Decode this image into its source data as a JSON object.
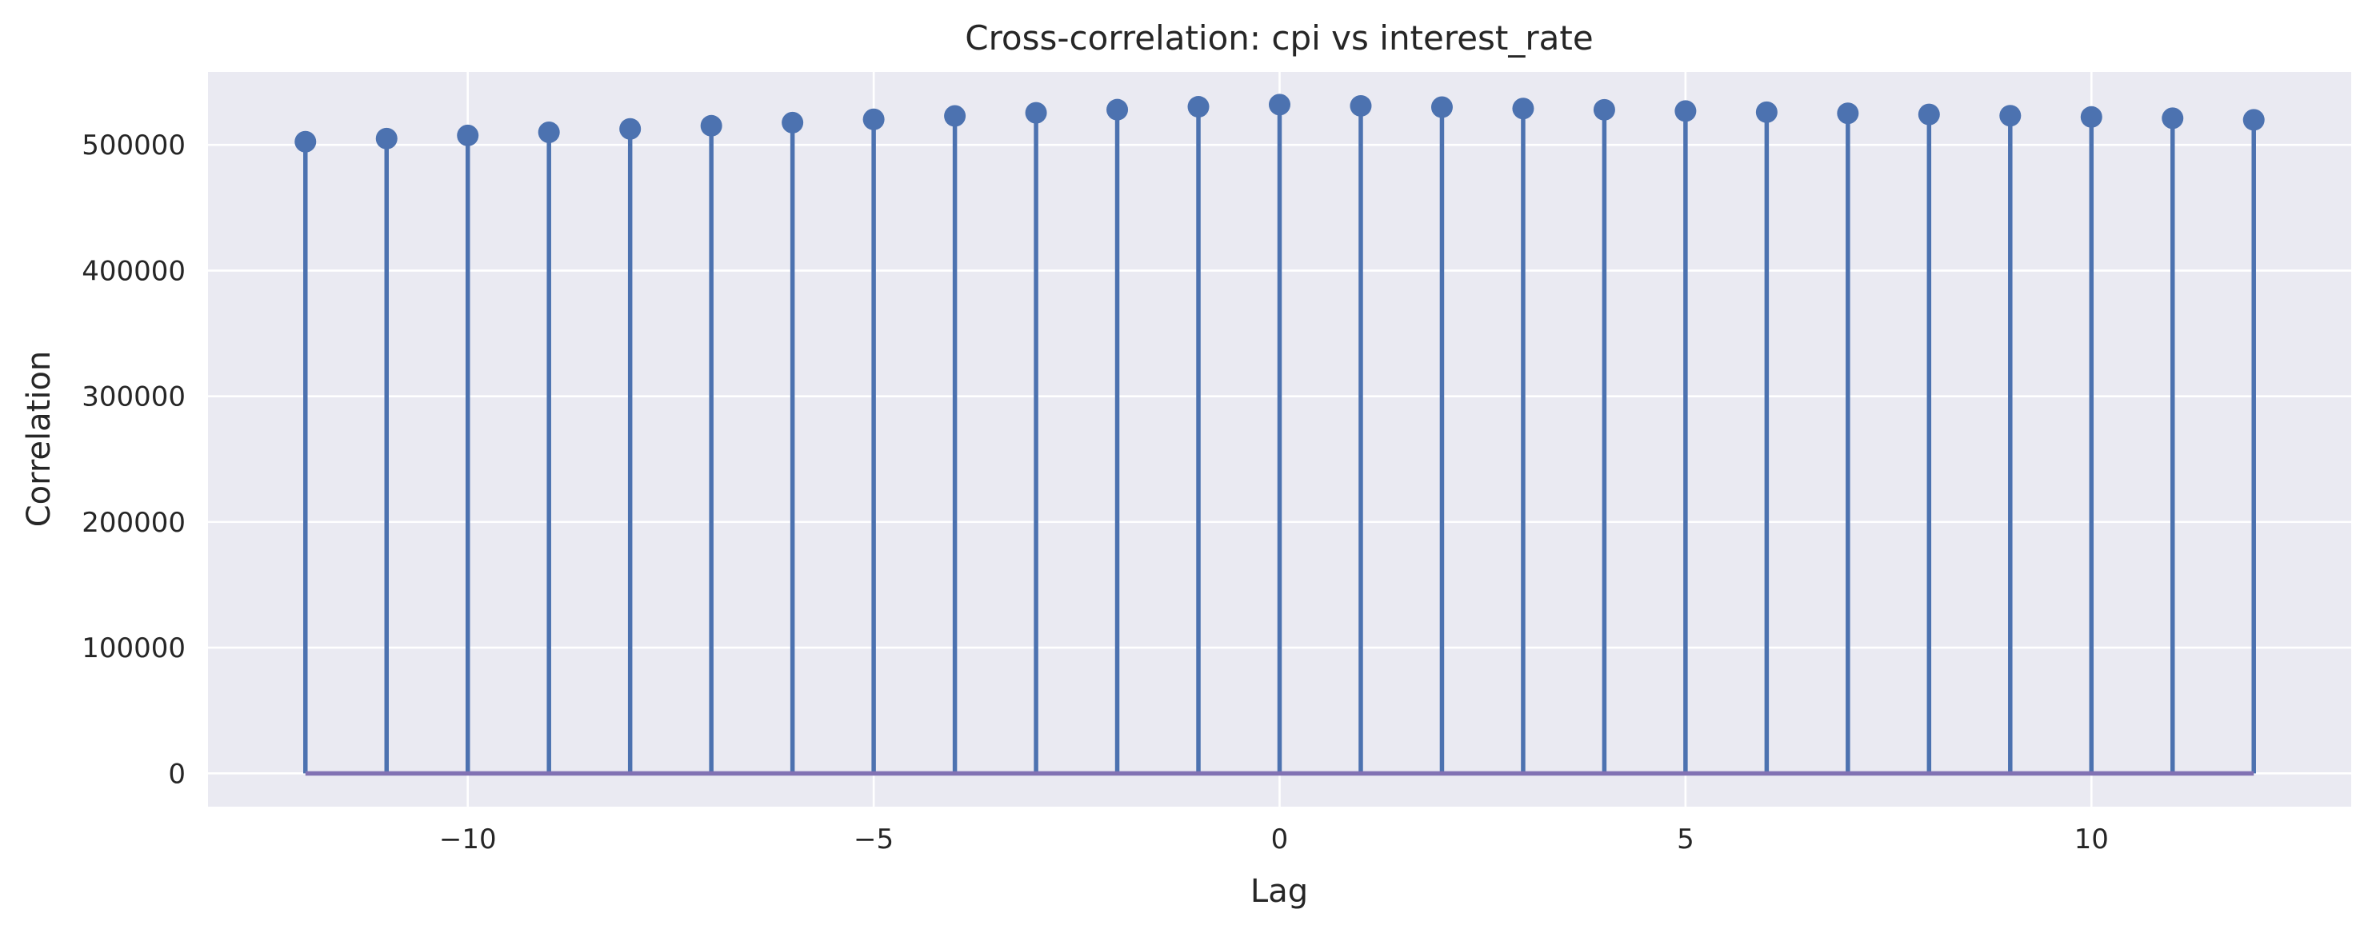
{
  "chart_data": {
    "type": "stem",
    "title": "Cross-correlation: cpi vs interest_rate",
    "xlabel": "Lag",
    "ylabel": "Correlation",
    "x": [
      -12,
      -11,
      -10,
      -9,
      -8,
      -7,
      -6,
      -5,
      -4,
      -3,
      -2,
      -1,
      0,
      1,
      2,
      3,
      4,
      5,
      6,
      7,
      8,
      9,
      10,
      11,
      12
    ],
    "values": [
      502500,
      505000,
      507500,
      510000,
      512700,
      515200,
      517700,
      520300,
      523000,
      525500,
      528000,
      530300,
      532000,
      531000,
      530000,
      528900,
      527900,
      526900,
      526000,
      525100,
      524200,
      523200,
      522200,
      521200,
      519900
    ],
    "xlim": [
      -13.2,
      13.2
    ],
    "ylim": [
      -26500,
      558000
    ],
    "xticks": [
      -10,
      -5,
      0,
      5,
      10
    ],
    "xtick_labels": [
      "−10",
      "−5",
      "0",
      "5",
      "10"
    ],
    "yticks": [
      0,
      100000,
      200000,
      300000,
      400000,
      500000
    ],
    "ytick_labels": [
      "0",
      "100000",
      "200000",
      "300000",
      "400000",
      "500000"
    ],
    "baseline": 0,
    "grid": true,
    "colors": {
      "plot_background": "#eaeaf2",
      "grid": "#ffffff",
      "stem": "#4c72b0",
      "marker": "#4c72b0",
      "baseline": "#8172b3"
    }
  }
}
